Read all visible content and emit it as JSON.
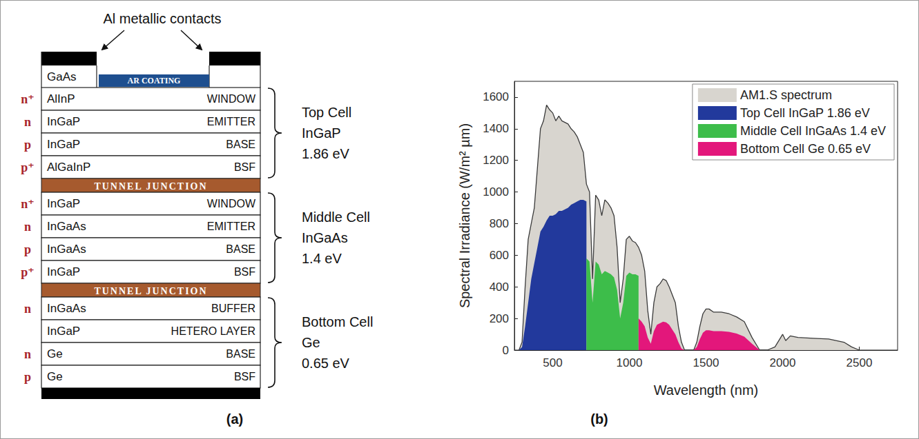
{
  "panel_labels": [
    "(a)",
    "(b)"
  ],
  "diagram": {
    "title": "Al metallic contacts",
    "cap": {
      "left": "GaAs",
      "center": "AR COATING"
    },
    "stack": [
      {
        "type": "cell",
        "name": "Top Cell",
        "material": "InGaP",
        "bandgap": "1.86 eV",
        "layers": [
          {
            "doping": "n⁺",
            "material": "AlInP",
            "role": "WINDOW"
          },
          {
            "doping": "n",
            "material": "InGaP",
            "role": "EMITTER"
          },
          {
            "doping": "p",
            "material": "InGaP",
            "role": "BASE"
          },
          {
            "doping": "p⁺",
            "material": "AlGaInP",
            "role": "BSF"
          }
        ]
      },
      {
        "type": "junction",
        "label": "TUNNEL JUNCTION"
      },
      {
        "type": "cell",
        "name": "Middle Cell",
        "material": "InGaAs",
        "bandgap": "1.4 eV",
        "layers": [
          {
            "doping": "n⁺",
            "material": "InGaP",
            "role": "WINDOW"
          },
          {
            "doping": "n",
            "material": "InGaAs",
            "role": "EMITTER"
          },
          {
            "doping": "p",
            "material": "InGaAs",
            "role": "BASE"
          },
          {
            "doping": "p⁺",
            "material": "InGaP",
            "role": "BSF"
          }
        ]
      },
      {
        "type": "junction",
        "label": "TUNNEL JUNCTION"
      },
      {
        "type": "cell",
        "name": "Bottom Cell",
        "material": "Ge",
        "bandgap": "0.65 eV",
        "layers": [
          {
            "doping": "n",
            "material": "InGaAs",
            "role": "BUFFER"
          },
          {
            "material": "InGaP",
            "role": "HETERO LAYER"
          },
          {
            "doping": "n",
            "material": "Ge",
            "role": "BASE"
          },
          {
            "doping": "p",
            "material": "Ge",
            "role": "BSF"
          }
        ]
      }
    ]
  },
  "chart_data": {
    "type": "area",
    "x_label": "Wavelength (nm)",
    "y_label": "Spectral Irradiance (W/m² µm)",
    "xlim": [
      250,
      2750
    ],
    "xticks": [
      500,
      1000,
      1500,
      2000,
      2500
    ],
    "ylim": [
      0,
      1700
    ],
    "yticks": [
      0,
      200,
      400,
      600,
      800,
      1000,
      1200,
      1400,
      1600
    ],
    "grid": false,
    "legend": "upper right",
    "series": [
      {
        "name": "AM1.S spectrum",
        "color": "#d8d5cf",
        "line_style": "solid",
        "x": [
          280,
          300,
          320,
          340,
          360,
          380,
          400,
          420,
          440,
          460,
          480,
          500,
          520,
          540,
          560,
          580,
          600,
          620,
          640,
          660,
          680,
          700,
          720,
          740,
          760,
          780,
          800,
          820,
          840,
          860,
          880,
          900,
          920,
          940,
          960,
          980,
          1000,
          1020,
          1040,
          1060,
          1080,
          1100,
          1120,
          1140,
          1160,
          1180,
          1200,
          1220,
          1240,
          1260,
          1280,
          1300,
          1320,
          1340,
          1360,
          1380,
          1400,
          1420,
          1440,
          1460,
          1480,
          1500,
          1520,
          1550,
          1600,
          1650,
          1700,
          1750,
          1800,
          1850,
          1900,
          1950,
          2000,
          2020,
          2050,
          2100,
          2200,
          2300,
          2400,
          2450,
          2500
        ],
        "values": [
          0,
          50,
          400,
          700,
          800,
          900,
          1150,
          1400,
          1450,
          1550,
          1520,
          1500,
          1450,
          1480,
          1450,
          1440,
          1430,
          1400,
          1380,
          1350,
          1300,
          1250,
          1050,
          1000,
          450,
          980,
          950,
          850,
          950,
          930,
          900,
          850,
          650,
          300,
          450,
          700,
          720,
          690,
          680,
          650,
          600,
          500,
          250,
          100,
          300,
          400,
          420,
          450,
          440,
          400,
          350,
          300,
          150,
          50,
          0,
          0,
          0,
          0,
          50,
          150,
          230,
          260,
          260,
          240,
          240,
          230,
          210,
          180,
          80,
          0,
          0,
          20,
          100,
          60,
          90,
          80,
          75,
          70,
          50,
          20,
          0
        ]
      },
      {
        "name": "Top Cell InGaP 1.86 eV",
        "color": "#22399c",
        "line_style": "none",
        "x": [
          280,
          300,
          320,
          340,
          360,
          380,
          400,
          420,
          440,
          460,
          480,
          500,
          520,
          540,
          560,
          580,
          600,
          620,
          640,
          660,
          680,
          700,
          720
        ],
        "values": [
          0,
          20,
          150,
          300,
          450,
          550,
          650,
          750,
          780,
          820,
          850,
          850,
          860,
          880,
          880,
          890,
          900,
          920,
          930,
          940,
          950,
          950,
          940
        ]
      },
      {
        "name": "Middle Cell InGaAs 1.4 eV",
        "color": "#3dbd4a",
        "line_style": "none",
        "x": [
          720,
          740,
          760,
          780,
          800,
          820,
          840,
          860,
          880,
          900,
          920,
          940,
          960,
          980,
          1000,
          1020,
          1040,
          1060
        ],
        "values": [
          580,
          560,
          300,
          560,
          540,
          480,
          500,
          490,
          480,
          460,
          380,
          200,
          300,
          470,
          490,
          480,
          480,
          470
        ]
      },
      {
        "name": "Bottom Cell Ge 0.65 eV",
        "color": "#e3177b",
        "line_style": "none",
        "x": [
          1060,
          1080,
          1100,
          1120,
          1140,
          1160,
          1180,
          1200,
          1220,
          1240,
          1260,
          1280,
          1300,
          1320,
          1340,
          1360,
          1380,
          1400,
          1420,
          1440,
          1460,
          1480,
          1500,
          1520,
          1550,
          1600,
          1650,
          1700,
          1750,
          1800,
          1850
        ],
        "values": [
          200,
          180,
          150,
          80,
          40,
          120,
          160,
          170,
          180,
          175,
          160,
          130,
          100,
          50,
          10,
          0,
          0,
          0,
          0,
          20,
          70,
          110,
          125,
          125,
          120,
          120,
          115,
          105,
          85,
          40,
          0
        ]
      }
    ]
  }
}
